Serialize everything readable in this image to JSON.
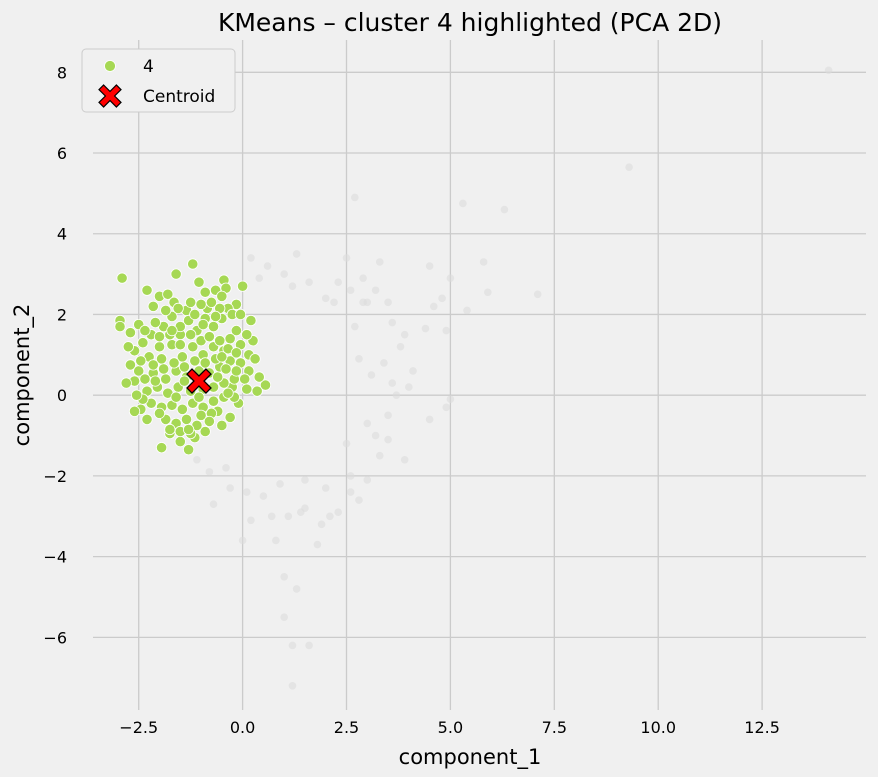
{
  "chart_data": {
    "type": "scatter",
    "title": "KMeans – cluster 4 highlighted (PCA 2D)",
    "xlabel": "component_1",
    "ylabel": "component_2",
    "xlim": [
      -3.6,
      15.0
    ],
    "ylim": [
      -7.8,
      8.8
    ],
    "grid": true,
    "legend_position": "top-left",
    "x_ticks": [
      -2.5,
      0.0,
      2.5,
      5.0,
      7.5,
      10.0,
      12.5
    ],
    "x_tick_labels": [
      "−2.5",
      "0.0",
      "2.5",
      "5.0",
      "7.5",
      "10.0",
      "12.5"
    ],
    "y_ticks": [
      -6,
      -4,
      -2,
      0,
      2,
      4,
      6,
      8
    ],
    "y_tick_labels": [
      "−6",
      "−4",
      "−2",
      "0",
      "2",
      "4",
      "6",
      "8"
    ],
    "series": [
      {
        "role": "other-clusters",
        "color": "#dcdcdc",
        "points": [
          [
            14.1,
            8.05
          ],
          [
            9.3,
            5.65
          ],
          [
            6.3,
            4.6
          ],
          [
            5.3,
            4.75
          ],
          [
            2.7,
            4.9
          ],
          [
            5.8,
            3.3
          ],
          [
            4.5,
            3.2
          ],
          [
            3.3,
            3.3
          ],
          [
            5.9,
            2.55
          ],
          [
            7.1,
            2.5
          ],
          [
            4.8,
            2.4
          ],
          [
            4.4,
            1.65
          ],
          [
            4.6,
            2.2
          ],
          [
            5.0,
            2.9
          ],
          [
            5.4,
            2.1
          ],
          [
            4.9,
            1.6
          ],
          [
            4.5,
            -0.6
          ],
          [
            5.0,
            -0.1
          ],
          [
            4.9,
            -0.3
          ],
          [
            3.9,
            -1.6
          ],
          [
            3.3,
            -1.5
          ],
          [
            3.5,
            -1.1
          ],
          [
            3.2,
            -1.0
          ],
          [
            3.7,
            0.0
          ],
          [
            2.5,
            3.4
          ],
          [
            2.6,
            2.6
          ],
          [
            3.0,
            2.3
          ],
          [
            3.5,
            2.3
          ],
          [
            3.8,
            1.2
          ],
          [
            4.1,
            0.6
          ],
          [
            2.8,
            -2.6
          ],
          [
            3.0,
            -2.1
          ],
          [
            1.5,
            -2.8
          ],
          [
            2.1,
            -3.0
          ],
          [
            1.1,
            -3.0
          ],
          [
            1.3,
            -4.8
          ],
          [
            1.0,
            -5.5
          ],
          [
            1.6,
            -6.2
          ],
          [
            1.2,
            -6.2
          ],
          [
            1.2,
            -7.2
          ],
          [
            1.0,
            -4.5
          ],
          [
            0.8,
            -3.6
          ],
          [
            1.4,
            -2.9
          ],
          [
            1.8,
            -3.7
          ],
          [
            0.2,
            -3.1
          ],
          [
            0.0,
            -3.6
          ],
          [
            0.1,
            -2.4
          ],
          [
            0.5,
            -2.5
          ],
          [
            -0.7,
            -2.7
          ],
          [
            -0.3,
            -2.3
          ],
          [
            1.9,
            -3.2
          ],
          [
            2.3,
            -2.9
          ],
          [
            2.6,
            -2.4
          ],
          [
            0.7,
            -3.0
          ],
          [
            -1.1,
            -1.6
          ],
          [
            -0.8,
            -1.9
          ],
          [
            -0.4,
            -1.8
          ],
          [
            1.3,
            3.5
          ],
          [
            1.0,
            3.0
          ],
          [
            0.6,
            3.2
          ],
          [
            0.4,
            2.9
          ],
          [
            1.6,
            2.8
          ],
          [
            1.2,
            2.7
          ],
          [
            2.0,
            2.4
          ],
          [
            2.3,
            2.8
          ],
          [
            0.2,
            3.4
          ],
          [
            2.9,
            2.9
          ],
          [
            3.2,
            2.6
          ],
          [
            2.9,
            2.3
          ],
          [
            3.6,
            1.8
          ],
          [
            2.6,
            -2.0
          ],
          [
            2.0,
            -2.3
          ],
          [
            1.5,
            -2.1
          ],
          [
            0.9,
            -2.2
          ],
          [
            3.1,
            0.5
          ],
          [
            3.4,
            0.8
          ],
          [
            3.6,
            0.3
          ],
          [
            3.5,
            -0.5
          ],
          [
            3.0,
            -0.7
          ],
          [
            2.7,
            1.7
          ],
          [
            4.0,
            0.2
          ],
          [
            2.5,
            -1.2
          ],
          [
            3.9,
            1.5
          ],
          [
            2.8,
            0.9
          ],
          [
            2.2,
            2.3
          ]
        ]
      },
      {
        "role": "highlighted-cluster",
        "name": "4",
        "color": "#a6d854",
        "points": [
          [
            -2.9,
            2.9
          ],
          [
            -1.2,
            3.25
          ],
          [
            -1.6,
            3.0
          ],
          [
            -1.05,
            2.8
          ],
          [
            -0.45,
            2.85
          ],
          [
            -0.4,
            2.65
          ],
          [
            -2.3,
            2.6
          ],
          [
            -2.15,
            2.2
          ],
          [
            -2.0,
            2.45
          ],
          [
            -1.8,
            2.5
          ],
          [
            -1.65,
            2.3
          ],
          [
            -0.9,
            2.55
          ],
          [
            -0.65,
            2.6
          ],
          [
            -0.5,
            2.45
          ],
          [
            0.0,
            2.7
          ],
          [
            -0.15,
            2.25
          ],
          [
            -0.35,
            2.15
          ],
          [
            -0.85,
            2.15
          ],
          [
            -1.35,
            2.1
          ],
          [
            -2.95,
            1.85
          ],
          [
            -2.95,
            1.7
          ],
          [
            -2.7,
            1.55
          ],
          [
            -2.5,
            1.75
          ],
          [
            -2.6,
            1.1
          ],
          [
            -2.75,
            1.2
          ],
          [
            -2.7,
            0.75
          ],
          [
            -2.5,
            0.6
          ],
          [
            -2.6,
            0.35
          ],
          [
            -2.8,
            0.3
          ],
          [
            -2.45,
            -0.35
          ],
          [
            -2.6,
            -0.4
          ],
          [
            -2.3,
            -0.6
          ],
          [
            -1.95,
            -1.3
          ],
          [
            -1.75,
            -0.95
          ],
          [
            -1.5,
            -1.15
          ],
          [
            -1.3,
            -1.35
          ],
          [
            -1.15,
            -1.05
          ],
          [
            -0.9,
            -0.9
          ],
          [
            -0.5,
            -0.75
          ],
          [
            -0.3,
            -0.55
          ],
          [
            0.55,
            0.25
          ],
          [
            0.4,
            0.45
          ],
          [
            0.15,
            0.6
          ],
          [
            0.15,
            1.0
          ],
          [
            0.25,
            1.35
          ],
          [
            0.2,
            1.85
          ],
          [
            -0.15,
            1.6
          ],
          [
            -0.05,
            1.25
          ],
          [
            -0.25,
            0.2
          ],
          [
            -0.1,
            -0.2
          ],
          [
            -2.2,
            1.5
          ],
          [
            -2.0,
            1.2
          ],
          [
            -1.9,
            1.7
          ],
          [
            -1.7,
            1.95
          ],
          [
            -1.5,
            1.5
          ],
          [
            -1.3,
            1.85
          ],
          [
            -1.1,
            1.6
          ],
          [
            -0.9,
            1.9
          ],
          [
            -0.7,
            1.7
          ],
          [
            -0.5,
            1.9
          ],
          [
            -0.3,
            1.4
          ],
          [
            -0.45,
            1.1
          ],
          [
            -0.7,
            1.2
          ],
          [
            -0.95,
            1.0
          ],
          [
            -1.2,
            1.2
          ],
          [
            -1.45,
            0.95
          ],
          [
            -1.7,
            1.25
          ],
          [
            -1.95,
            0.9
          ],
          [
            -2.25,
            0.95
          ],
          [
            -2.4,
            1.3
          ],
          [
            -2.15,
            0.55
          ],
          [
            -1.85,
            0.4
          ],
          [
            -1.6,
            0.6
          ],
          [
            -1.35,
            0.45
          ],
          [
            -1.05,
            0.6
          ],
          [
            -0.8,
            0.55
          ],
          [
            -0.55,
            0.7
          ],
          [
            -0.3,
            0.85
          ],
          [
            -0.05,
            0.8
          ],
          [
            0.05,
            0.4
          ],
          [
            -0.2,
            0.4
          ],
          [
            -0.45,
            0.3
          ],
          [
            -0.7,
            0.2
          ],
          [
            -0.95,
            0.15
          ],
          [
            -1.25,
            0.1
          ],
          [
            -1.55,
            0.2
          ],
          [
            -1.8,
            0.05
          ],
          [
            -2.05,
            0.2
          ],
          [
            -2.3,
            0.1
          ],
          [
            -2.2,
            -0.2
          ],
          [
            -1.95,
            -0.3
          ],
          [
            -1.7,
            -0.25
          ],
          [
            -1.45,
            -0.35
          ],
          [
            -1.2,
            -0.2
          ],
          [
            -0.95,
            -0.3
          ],
          [
            -0.7,
            -0.15
          ],
          [
            -0.45,
            -0.05
          ],
          [
            -0.2,
            -0.05
          ],
          [
            -1.85,
            -0.6
          ],
          [
            -1.6,
            -0.7
          ],
          [
            -1.35,
            -0.6
          ],
          [
            -1.1,
            -0.75
          ],
          [
            -0.85,
            -0.55
          ],
          [
            -0.6,
            -0.4
          ],
          [
            -1.75,
            -0.85
          ],
          [
            -1.5,
            -0.9
          ],
          [
            -1.25,
            -0.95
          ],
          [
            -1.0,
            -0.5
          ],
          [
            -0.75,
            -0.45
          ],
          [
            -2.4,
            -0.1
          ],
          [
            -2.55,
            0.0
          ],
          [
            -2.45,
            0.85
          ],
          [
            -2.35,
            1.6
          ],
          [
            -2.1,
            1.8
          ],
          [
            -1.85,
            2.1
          ],
          [
            -1.55,
            2.15
          ],
          [
            -1.25,
            2.3
          ],
          [
            -1.0,
            2.25
          ],
          [
            -0.75,
            2.3
          ],
          [
            -0.55,
            2.15
          ],
          [
            -0.25,
            2.0
          ],
          [
            -0.05,
            2.0
          ],
          [
            0.1,
            1.5
          ],
          [
            0.3,
            0.9
          ],
          [
            0.35,
            0.1
          ],
          [
            0.1,
            0.15
          ],
          [
            -0.15,
            0.6
          ],
          [
            -0.4,
            0.65
          ],
          [
            -0.65,
            0.9
          ],
          [
            -0.9,
            0.8
          ],
          [
            -1.15,
            0.85
          ],
          [
            -1.4,
            0.7
          ],
          [
            -1.65,
            0.8
          ],
          [
            -1.9,
            0.65
          ],
          [
            -2.15,
            0.75
          ],
          [
            -2.0,
            1.45
          ],
          [
            -1.75,
            1.5
          ],
          [
            -1.5,
            1.25
          ],
          [
            -1.25,
            1.5
          ],
          [
            -1.0,
            1.35
          ],
          [
            -0.8,
            1.45
          ],
          [
            -0.55,
            1.35
          ],
          [
            -0.35,
            1.15
          ],
          [
            -0.15,
            1.05
          ],
          [
            -2.35,
            0.4
          ],
          [
            -2.1,
            0.35
          ],
          [
            -1.4,
            0.35
          ],
          [
            -0.6,
            0.45
          ],
          [
            -0.35,
            0.05
          ],
          [
            -1.05,
            -0.05
          ],
          [
            -1.6,
            -0.05
          ],
          [
            -0.8,
            -0.65
          ],
          [
            -1.3,
            -0.85
          ],
          [
            -2.0,
            -0.45
          ],
          [
            -0.5,
            0.95
          ],
          [
            -1.5,
            1.7
          ],
          [
            -0.95,
            1.75
          ],
          [
            -1.15,
            2.0
          ],
          [
            -0.65,
            1.95
          ],
          [
            -1.7,
            1.6
          ]
        ]
      }
    ],
    "centroid": {
      "name": "Centroid",
      "x": -1.05,
      "y": 0.35,
      "color": "#ff0000",
      "marker": "X"
    },
    "legend": [
      {
        "label": "4",
        "color": "#a6d854",
        "marker": "circle"
      },
      {
        "label": "Centroid",
        "color": "#ff0000",
        "marker": "X"
      }
    ]
  }
}
